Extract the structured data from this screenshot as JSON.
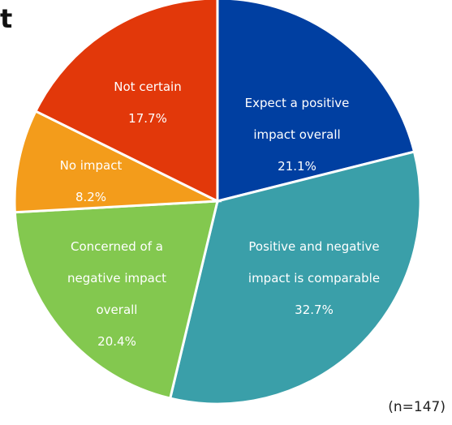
{
  "chart_data": {
    "type": "pie",
    "title": "t",
    "annotation": "(n=147)",
    "categories": [
      "Expect a positive impact overall",
      "Positive and negative impact is comparable",
      "Concerned of a negative impact overall",
      "No impact",
      "Not certain"
    ],
    "values": [
      21.1,
      32.7,
      20.4,
      8.2,
      17.7
    ],
    "value_labels": [
      "21.1%",
      "32.7%",
      "20.4%",
      "8.2%",
      "17.7%"
    ],
    "colors": [
      "#003fa1",
      "#3a9fa9",
      "#83c84f",
      "#f39c1b",
      "#e2380a"
    ]
  }
}
